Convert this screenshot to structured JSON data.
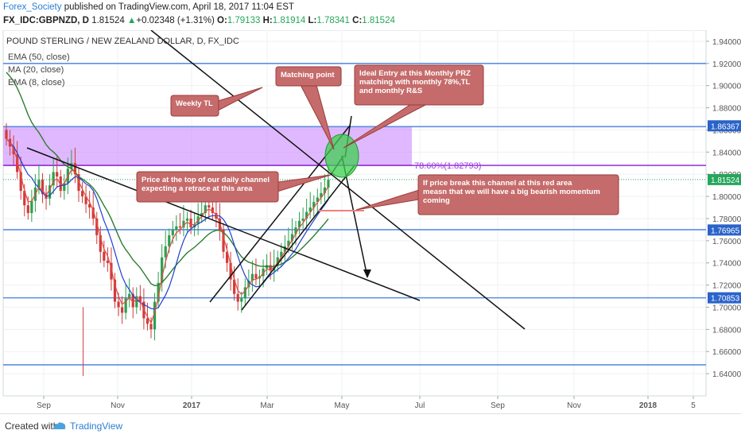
{
  "header": {
    "username": "Forex_Society",
    "published": " published on TradingView.com, April 18, 2017 11:04 EST",
    "symbol": "FX_IDC:GBPNZD, D",
    "price": "1.81524",
    "change": "+0.02348 (+1.31%)",
    "o_label": "O:",
    "o_val": "1.79133",
    "h_label": "H:",
    "h_val": "1.81914",
    "l_label": "L:",
    "l_val": "1.78341",
    "c_label": "C:",
    "c_val": "1.81524"
  },
  "footer": {
    "created": "Created with",
    "brand": "TradingView"
  },
  "chart_data": {
    "type": "candlestick",
    "title": "POUND STERLING / NEW ZEALAND DOLLAR, D, FX_IDC",
    "legend": [
      "EMA (50, close)",
      "MA (20, close)",
      "EMA (8, close)"
    ],
    "ylim": [
      1.62,
      1.95
    ],
    "y_ticks": [
      "1.94000",
      "1.92000",
      "1.90000",
      "1.88000",
      "1.86000",
      "1.84000",
      "1.82000",
      "1.80000",
      "1.78000",
      "1.76000",
      "1.74000",
      "1.72000",
      "1.70000",
      "1.68000",
      "1.66000",
      "1.64000"
    ],
    "x_ticks": [
      "Sep",
      "Nov",
      "2017",
      "Mar",
      "May",
      "Jul",
      "Sep",
      "Nov",
      "2018",
      "5"
    ],
    "price_badges": [
      {
        "label": "1.86367",
        "value": 1.8637
      },
      {
        "label": "1.81524",
        "value": 1.8152
      },
      {
        "label": "1.76965",
        "value": 1.7697
      },
      {
        "label": "1.70853",
        "value": 1.7085
      }
    ],
    "horizontal_levels": [
      1.92,
      1.863,
      1.828,
      1.77,
      1.7085,
      1.648
    ],
    "zone": {
      "top": 1.863,
      "bottom": 1.828
    },
    "fib_label": "78.60%(1.82793)",
    "last_price": 1.8152,
    "callouts": [
      {
        "text": "Matching point"
      },
      {
        "text": "Ideal Entry at this Monthly PRZ matching with monthly 78%,TL and monthly R&S"
      },
      {
        "text": "Weekly TL"
      },
      {
        "text": "Price at the top of our daily channel expecting a retrace at this area"
      },
      {
        "text": "If price break this channel at this red area measn that we will have a big bearish momentum coming"
      }
    ],
    "series_close": [
      1.852,
      1.845,
      1.838,
      1.822,
      1.805,
      1.792,
      1.785,
      1.796,
      1.808,
      1.815,
      1.802,
      1.798,
      1.81,
      1.822,
      1.818,
      1.805,
      1.812,
      1.825,
      1.83,
      1.82,
      1.805,
      1.8,
      1.793,
      1.79,
      1.78,
      1.765,
      1.75,
      1.742,
      1.74,
      1.725,
      1.705,
      1.7,
      1.695,
      1.708,
      1.712,
      1.7,
      1.71,
      1.705,
      1.69,
      1.685,
      1.68,
      1.705,
      1.722,
      1.745,
      1.755,
      1.765,
      1.77,
      1.773,
      1.772,
      1.778,
      1.78,
      1.772,
      1.775,
      1.782,
      1.785,
      1.792,
      1.79,
      1.785,
      1.78,
      1.77,
      1.75,
      1.74,
      1.725,
      1.712,
      1.705,
      1.708,
      1.718,
      1.724,
      1.73,
      1.726,
      1.728,
      1.735,
      1.738,
      1.733,
      1.738,
      1.745,
      1.75,
      1.755,
      1.76,
      1.766,
      1.772,
      1.778,
      1.78,
      1.786,
      1.79,
      1.795,
      1.799,
      1.803,
      1.808,
      1.815
    ]
  }
}
